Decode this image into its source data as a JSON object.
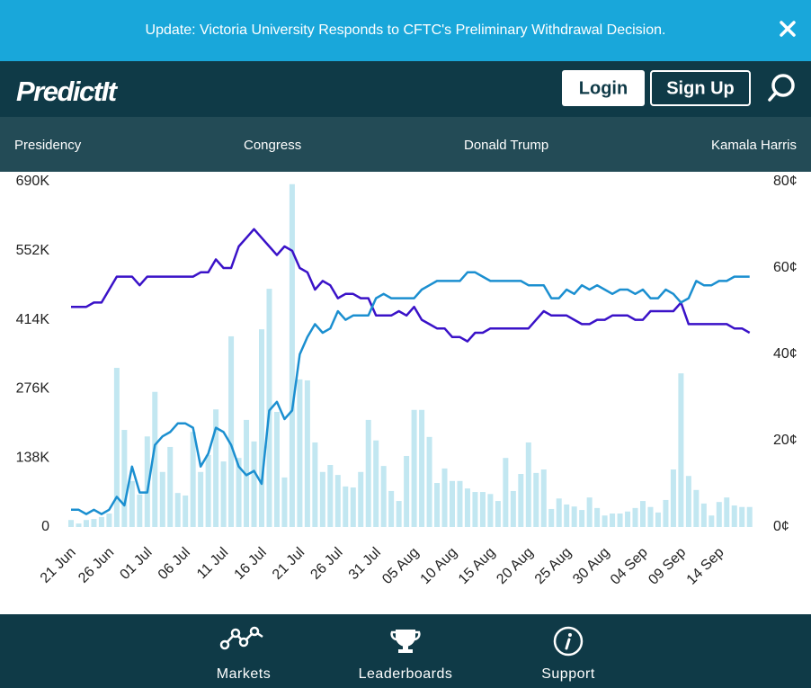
{
  "banner": {
    "text": "Update: Victoria University Responds to CFTC's Preliminary Withdrawal Decision."
  },
  "header": {
    "logo": "PredictIt",
    "login": "Login",
    "signup": "Sign Up"
  },
  "nav": [
    "Presidency",
    "Congress",
    "Donald Trump",
    "Kamala Harris"
  ],
  "chart_data": {
    "type": "bar",
    "categories": [
      "21 Jun",
      null,
      null,
      null,
      null,
      "26 Jun",
      null,
      null,
      null,
      null,
      "01 Jul",
      null,
      null,
      null,
      null,
      "06 Jul",
      null,
      null,
      null,
      null,
      "11 Jul",
      null,
      null,
      null,
      null,
      "16 Jul",
      null,
      null,
      null,
      null,
      "21 Jul",
      null,
      null,
      null,
      null,
      "26 Jul",
      null,
      null,
      null,
      null,
      "31 Jul",
      null,
      null,
      null,
      null,
      "05 Aug",
      null,
      null,
      null,
      null,
      "10 Aug",
      null,
      null,
      null,
      null,
      "15 Aug",
      null,
      null,
      null,
      null,
      "20 Aug",
      null,
      null,
      null,
      null,
      "25 Aug",
      null,
      null,
      null,
      null,
      "30 Aug",
      null,
      null,
      null,
      null,
      "04 Sep",
      null,
      null,
      null,
      null,
      "09 Sep",
      null,
      null,
      null,
      null,
      "14 Sep",
      null,
      null,
      null,
      null
    ],
    "series": [
      {
        "type": "bar",
        "color": "#c2e7f1",
        "values": [
          14000,
          7000,
          14000,
          16000,
          20000,
          27000,
          318000,
          194000,
          92000,
          65000,
          181000,
          270000,
          110000,
          160000,
          68000,
          63000,
          190000,
          110000,
          144000,
          235000,
          131000,
          381000,
          138000,
          214000,
          171000,
          395000,
          476000,
          230000,
          99000,
          685000,
          295000,
          293000,
          169000,
          110000,
          124000,
          104000,
          81000,
          79000,
          110000,
          214000,
          173000,
          122000,
          72000,
          52000,
          142000,
          234000,
          234000,
          180000,
          88000,
          117000,
          92000,
          92000,
          77000,
          70000,
          70000,
          66000,
          52000,
          138000,
          72000,
          106000,
          169000,
          108000,
          115000,
          36000,
          57000,
          45000,
          41000,
          34000,
          59000,
          38000,
          23000,
          27000,
          27000,
          31000,
          38000,
          52000,
          40000,
          29000,
          54000,
          115000,
          307000,
          102000,
          74000,
          47000,
          23000,
          50000,
          59000,
          43000,
          40000,
          40000
        ]
      },
      {
        "type": "line",
        "axis": "y2",
        "color": "#3a12c8",
        "values": [
          51,
          51,
          51,
          52,
          52,
          55,
          58,
          58,
          58,
          56,
          58,
          58,
          58,
          58,
          58,
          58,
          58,
          59,
          59,
          62,
          60,
          60,
          65,
          67,
          69,
          67,
          65,
          63,
          65,
          64,
          60,
          59,
          55,
          57,
          56,
          53,
          54,
          54,
          53,
          53,
          49,
          49,
          49,
          50,
          49,
          51,
          48,
          47,
          46,
          46,
          44,
          44,
          43,
          45,
          45,
          46,
          46,
          46,
          46,
          46,
          46,
          48,
          50,
          49,
          49,
          49,
          48,
          47,
          47,
          48,
          48,
          49,
          49,
          49,
          48,
          48,
          50,
          50,
          50,
          50,
          52,
          47,
          47,
          47,
          47,
          47,
          47,
          46,
          46,
          45
        ]
      },
      {
        "type": "line",
        "axis": "y2",
        "color": "#1b8fd0",
        "values": [
          4,
          4,
          3,
          4,
          3,
          4,
          7,
          5,
          14,
          8,
          8,
          19,
          21,
          22,
          24,
          24,
          23,
          14,
          17,
          23,
          22,
          19,
          14,
          12,
          13,
          10,
          27,
          29,
          25,
          27,
          40,
          44,
          47,
          45,
          46,
          50,
          48,
          49,
          49,
          49,
          53,
          54,
          53,
          53,
          53,
          53,
          55,
          56,
          57,
          57,
          57,
          57,
          59,
          59,
          58,
          57,
          57,
          57,
          57,
          57,
          56,
          56,
          56,
          53,
          53,
          55,
          54,
          56,
          55,
          56,
          55,
          54,
          55,
          55,
          54,
          55,
          53,
          53,
          55,
          54,
          52,
          53,
          57,
          56,
          56,
          57,
          57,
          58,
          58,
          58
        ]
      }
    ],
    "ylim": [
      0,
      690000
    ],
    "yticks": [
      0,
      {
        "value": 138000,
        "label": "138K"
      },
      {
        "value": 276000,
        "label": "276K"
      },
      {
        "value": 414000,
        "label": "414K"
      },
      {
        "value": 552000,
        "label": "552K"
      },
      {
        "value": 690000,
        "label": "690K"
      }
    ],
    "y2lim": [
      0,
      80
    ],
    "y2ticks": [
      {
        "value": 0,
        "label": "0¢"
      },
      {
        "value": 20,
        "label": "20¢"
      },
      {
        "value": 40,
        "label": "40¢"
      },
      {
        "value": 60,
        "label": "60¢"
      },
      {
        "value": 80,
        "label": "80¢"
      }
    ]
  },
  "footer": [
    "Markets",
    "Leaderboards",
    "Support"
  ]
}
